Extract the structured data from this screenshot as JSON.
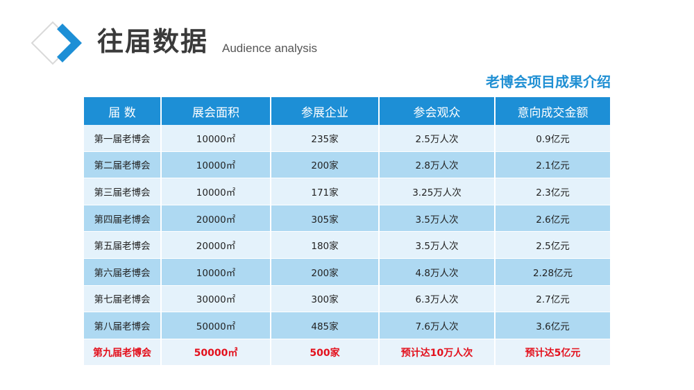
{
  "header": {
    "title": "往届数据",
    "subtitle": "Audience analysis"
  },
  "section_title": "老博会项目成果介绍",
  "colors": {
    "accent": "#1d8fd6",
    "highlight": "#e3101c",
    "row_light": "#e4f2fb",
    "row_dark": "#aed9f2"
  },
  "table": {
    "columns": [
      "届 数",
      "展会面积",
      "参展企业",
      "参会观众",
      "意向成交金额"
    ],
    "rows": [
      [
        "第一届老博会",
        "10000㎡",
        "235家",
        "2.5万人次",
        "0.9亿元"
      ],
      [
        "第二届老博会",
        "10000㎡",
        "200家",
        "2.8万人次",
        "2.1亿元"
      ],
      [
        "第三届老博会",
        "10000㎡",
        "171家",
        "3.25万人次",
        "2.3亿元"
      ],
      [
        "第四届老博会",
        "20000㎡",
        "305家",
        "3.5万人次",
        "2.6亿元"
      ],
      [
        "第五届老博会",
        "20000㎡",
        "180家",
        "3.5万人次",
        "2.5亿元"
      ],
      [
        "第六届老博会",
        "10000㎡",
        "200家",
        "4.8万人次",
        "2.28亿元"
      ],
      [
        "第七届老博会",
        "30000㎡",
        "300家",
        "6.3万人次",
        "2.7亿元"
      ],
      [
        "第八届老博会",
        "50000㎡",
        "485家",
        "7.6万人次",
        "3.6亿元"
      ],
      [
        "第九届老博会",
        "50000㎡",
        "500家",
        "预计达10万人次",
        "预计达5亿元"
      ]
    ]
  }
}
